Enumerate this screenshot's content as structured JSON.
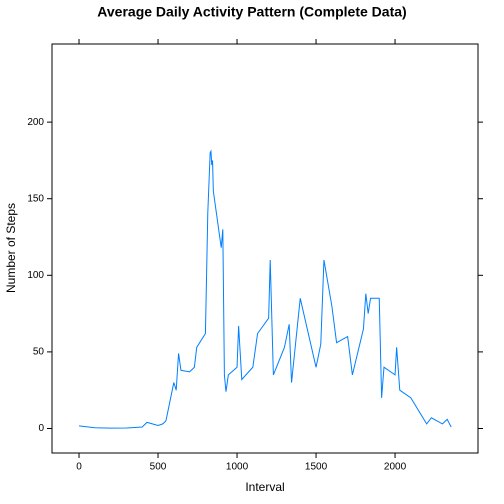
{
  "chart_data": {
    "type": "line",
    "title": "Average Daily Activity Pattern (Complete Data)",
    "x_label": "Interval",
    "y_label": "Number of Steps",
    "x": [
      0,
      100,
      200,
      300,
      400,
      430,
      500,
      530,
      550,
      600,
      615,
      630,
      645,
      700,
      730,
      745,
      800,
      815,
      830,
      835,
      840,
      845,
      850,
      900,
      910,
      920,
      930,
      945,
      1000,
      1010,
      1030,
      1100,
      1130,
      1200,
      1210,
      1230,
      1300,
      1330,
      1345,
      1400,
      1500,
      1530,
      1550,
      1600,
      1630,
      1700,
      1730,
      1800,
      1815,
      1830,
      1845,
      1900,
      1915,
      1930,
      2000,
      2010,
      2030,
      2100,
      2200,
      2230,
      2300,
      2330,
      2355
    ],
    "series": [
      {
        "name": "steps",
        "color": "#0080ff",
        "values": [
          1.7,
          0.5,
          0.2,
          0.3,
          1,
          4,
          2,
          3,
          5,
          30,
          25,
          49,
          38,
          37,
          40,
          53,
          62,
          141,
          180,
          181,
          172,
          175,
          155,
          118,
          130,
          35,
          24,
          35,
          40,
          67,
          32,
          40,
          62,
          72,
          110,
          35,
          53,
          68,
          30,
          85,
          40,
          55,
          110,
          80,
          56,
          60,
          35,
          65,
          88,
          75,
          85,
          85,
          20,
          40,
          35,
          53,
          25,
          20,
          3,
          7,
          3,
          6,
          1
        ]
      }
    ],
    "xlim": [
      -171,
      2525
    ],
    "ylim": [
      -16,
      251
    ],
    "xticks": [
      0,
      500,
      1000,
      1500,
      2000
    ],
    "yticks": [
      0,
      50,
      100,
      150,
      200
    ]
  }
}
